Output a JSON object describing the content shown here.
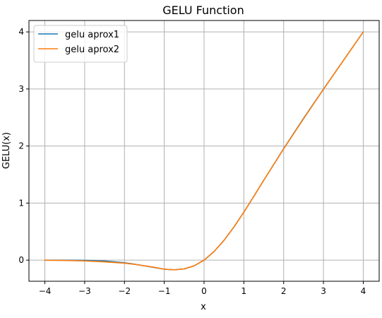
{
  "chart_data": {
    "type": "line",
    "title": "GELU Function",
    "xlabel": "x",
    "ylabel": "GELU(x)",
    "xlim": [
      -4.4,
      4.4
    ],
    "ylim": [
      -0.37,
      4.2
    ],
    "xticks": [
      -4,
      -3,
      -2,
      -1,
      0,
      1,
      2,
      3,
      4
    ],
    "yticks": [
      0,
      1,
      2,
      3,
      4
    ],
    "xtick_labels": [
      "−4",
      "−3",
      "−2",
      "−1",
      "0",
      "1",
      "2",
      "3",
      "4"
    ],
    "ytick_labels": [
      "0",
      "1",
      "2",
      "3",
      "4"
    ],
    "grid": true,
    "legend_position": "top-left",
    "x": [
      -4.0,
      -3.5,
      -3.0,
      -2.5,
      -2.0,
      -1.75,
      -1.5,
      -1.25,
      -1.0,
      -0.75,
      -0.5,
      -0.25,
      0.0,
      0.25,
      0.5,
      0.75,
      1.0,
      1.25,
      1.5,
      2.0,
      2.5,
      3.0,
      3.5,
      4.0
    ],
    "series": [
      {
        "name": "gelu aprox1",
        "color": "#1f77b4",
        "values": [
          0.0,
          -0.001,
          -0.004,
          -0.015,
          -0.045,
          -0.07,
          -0.1,
          -0.13,
          -0.159,
          -0.17,
          -0.154,
          -0.1,
          0.0,
          0.15,
          0.346,
          0.58,
          0.841,
          1.118,
          1.4,
          1.955,
          2.485,
          2.996,
          3.499,
          4.0
        ]
      },
      {
        "name": "gelu aprox2",
        "color": "#ff7f0e",
        "values": [
          -0.002,
          -0.006,
          -0.014,
          -0.03,
          -0.054,
          -0.073,
          -0.098,
          -0.125,
          -0.159,
          -0.17,
          -0.154,
          -0.1,
          0.0,
          0.15,
          0.346,
          0.58,
          0.841,
          1.118,
          1.4,
          1.95,
          2.478,
          2.993,
          3.497,
          3.999
        ]
      }
    ]
  }
}
